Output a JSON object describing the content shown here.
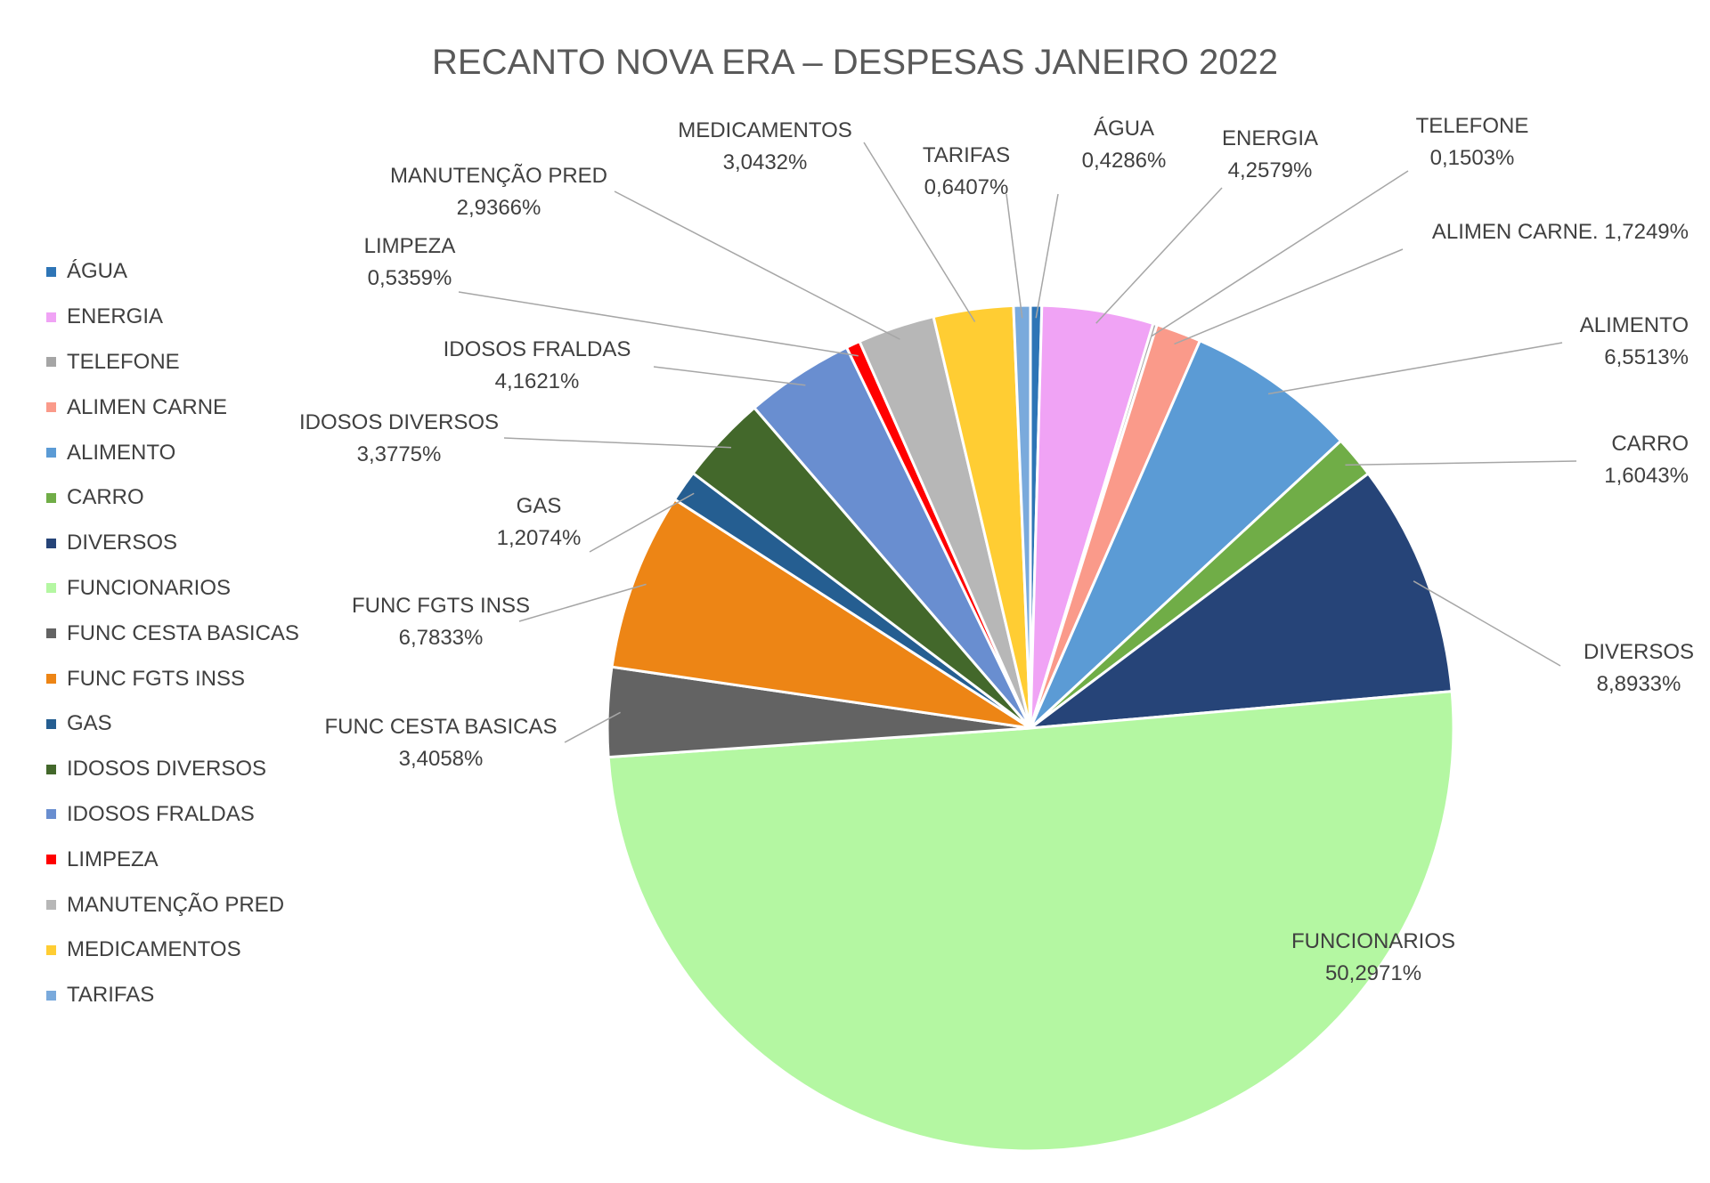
{
  "chart_data": {
    "type": "pie",
    "title": "RECANTO NOVA ERA – DESPESAS JANEIRO 2022",
    "legend_position": "left",
    "slices": [
      {
        "legend": "ÁGUA",
        "name": "ÁGUA",
        "value": 0.4286,
        "pct": "0,4286%",
        "color": "#2E75B6"
      },
      {
        "legend": "ENERGIA",
        "name": "ENERGIA",
        "value": 4.2579,
        "pct": "4,2579%",
        "color": "#F0A3F5"
      },
      {
        "legend": "TELEFONE",
        "name": "TELEFONE",
        "value": 0.1503,
        "pct": "0,1503%",
        "color": "#A5A5A5"
      },
      {
        "legend": "ALIMEN CARNE",
        "name": "ALIMEN CARNE.",
        "value": 1.7249,
        "pct": "1,7249%",
        "color": "#FA9A8A"
      },
      {
        "legend": "ALIMENTO",
        "name": "ALIMENTO",
        "value": 6.5513,
        "pct": "6,5513%",
        "color": "#5B9BD5"
      },
      {
        "legend": "CARRO",
        "name": "CARRO",
        "value": 1.6043,
        "pct": "1,6043%",
        "color": "#70AD47"
      },
      {
        "legend": "DIVERSOS",
        "name": "DIVERSOS",
        "value": 8.8933,
        "pct": "8,8933%",
        "color": "#264478"
      },
      {
        "legend": "FUNCIONARIOS",
        "name": "FUNCIONARIOS",
        "value": 50.2971,
        "pct": "50,2971%",
        "color": "#B4F7A2"
      },
      {
        "legend": "FUNC CESTA BASICAS",
        "name": "FUNC CESTA BASICAS",
        "value": 3.4058,
        "pct": "3,4058%",
        "color": "#636363"
      },
      {
        "legend": "FUNC FGTS INSS",
        "name": "FUNC FGTS INSS",
        "value": 6.7833,
        "pct": "6,7833%",
        "color": "#ED8515"
      },
      {
        "legend": "GAS",
        "name": "GAS",
        "value": 1.2074,
        "pct": "1,2074%",
        "color": "#255E91"
      },
      {
        "legend": "IDOSOS DIVERSOS",
        "name": "IDOSOS DIVERSOS",
        "value": 3.3775,
        "pct": "3,3775%",
        "color": "#43682B"
      },
      {
        "legend": "IDOSOS FRALDAS",
        "name": "IDOSOS FRALDAS",
        "value": 4.1621,
        "pct": "4,1621%",
        "color": "#698ED0"
      },
      {
        "legend": "LIMPEZA",
        "name": "LIMPEZA",
        "value": 0.5359,
        "pct": "0,5359%",
        "color": "#FF0000"
      },
      {
        "legend": "MANUTENÇÃO PRED",
        "name": "MANUTENÇÃO PRED",
        "value": 2.9366,
        "pct": "2,9366%",
        "color": "#B7B7B7"
      },
      {
        "legend": "MEDICAMENTOS",
        "name": "MEDICAMENTOS",
        "value": 3.0432,
        "pct": "3,0432%",
        "color": "#FFCD33"
      },
      {
        "legend": "TARIFAS",
        "name": "TARIFAS",
        "value": 0.6407,
        "pct": "0,6407%",
        "color": "#7AAADC"
      }
    ]
  }
}
